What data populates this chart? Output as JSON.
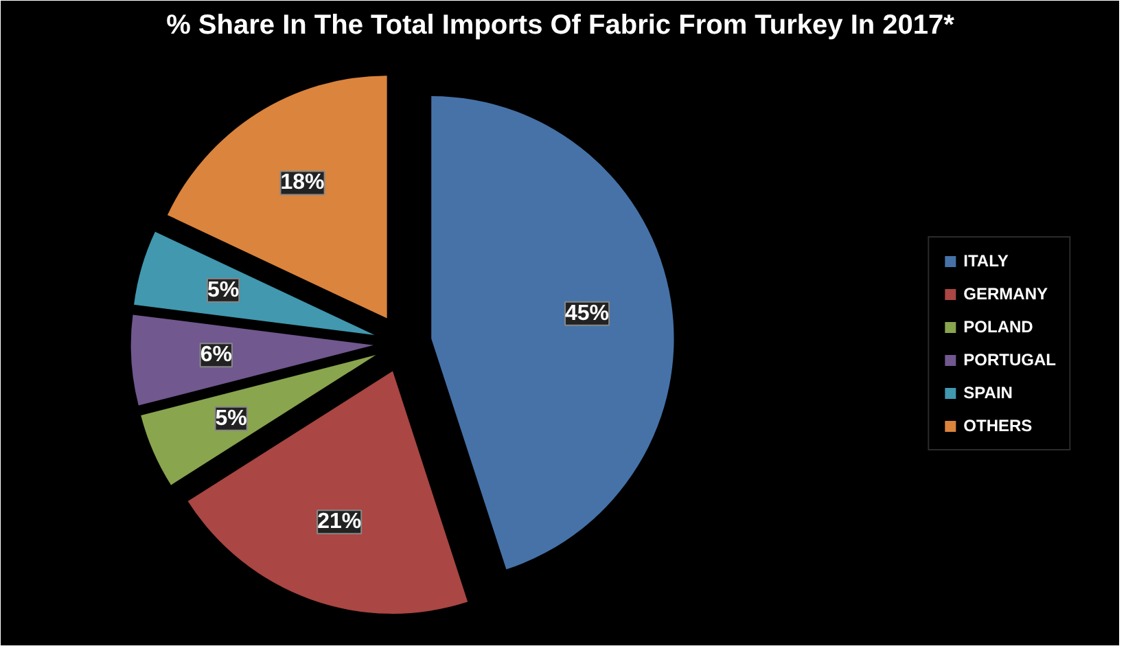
{
  "chart_data": {
    "type": "pie",
    "title": "% Share In The Total Imports Of Fabric From Turkey In 2017*",
    "categories": [
      "ITALY",
      "GERMANY",
      "POLAND",
      "PORTUGAL",
      "SPAIN",
      "OTHERS"
    ],
    "values": [
      45,
      21,
      5,
      6,
      5,
      18
    ],
    "colors": [
      "#4672a8",
      "#aa4643",
      "#89a54e",
      "#71588f",
      "#4198af",
      "#db843d"
    ],
    "value_labels": [
      "45%",
      "21%",
      "5%",
      "6%",
      "5%",
      "18%"
    ],
    "legend": "right"
  }
}
